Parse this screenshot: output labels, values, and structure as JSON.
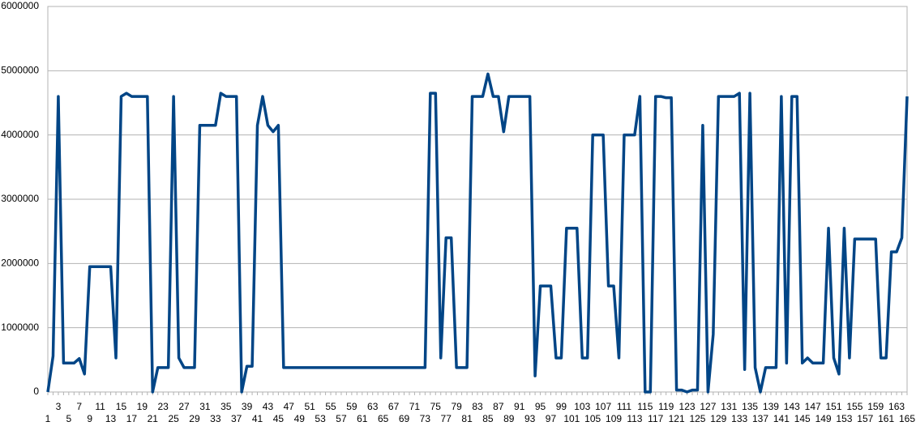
{
  "chart_data": {
    "type": "line",
    "categories": [
      1,
      null,
      3,
      null,
      5,
      null,
      7,
      null,
      9,
      null,
      11,
      null,
      13,
      null,
      15,
      null,
      17,
      null,
      19,
      null,
      21,
      null,
      23,
      null,
      25,
      null,
      27,
      null,
      29,
      null,
      31,
      null,
      33,
      null,
      35,
      null,
      37,
      null,
      39,
      null,
      41,
      null,
      43,
      null,
      45,
      null,
      47,
      null,
      49,
      null,
      51,
      null,
      53,
      null,
      55,
      null,
      57,
      null,
      59,
      null,
      61,
      null,
      63,
      null,
      65,
      null,
      67,
      null,
      69,
      null,
      71,
      null,
      73,
      null,
      75,
      null,
      77,
      null,
      79,
      null,
      81,
      null,
      83,
      null,
      85,
      null,
      87,
      null,
      89,
      null,
      91,
      null,
      93,
      null,
      95,
      null,
      97,
      null,
      99,
      null,
      101,
      null,
      103,
      null,
      105,
      null,
      107,
      null,
      109,
      null,
      111,
      null,
      113,
      null,
      115,
      null,
      117,
      null,
      119,
      null,
      121,
      null,
      123,
      null,
      125,
      null,
      127,
      null,
      129,
      null,
      131,
      null,
      133,
      null,
      135,
      null,
      137,
      null,
      139,
      null,
      141,
      null,
      143,
      null,
      145,
      null,
      147,
      null,
      149,
      null,
      151,
      null,
      153,
      null,
      155,
      null,
      157,
      null,
      159,
      null,
      161,
      null,
      163,
      null,
      165
    ],
    "series": [
      {
        "color": "#004586",
        "values": [
          0,
          560000,
          4600000,
          450000,
          450000,
          450000,
          520000,
          280000,
          1950000,
          1950000,
          1950000,
          1950000,
          1950000,
          530000,
          4600000,
          4650000,
          4600000,
          4600000,
          4600000,
          4600000,
          0,
          380000,
          380000,
          380000,
          4600000,
          530000,
          380000,
          380000,
          380000,
          4150000,
          4150000,
          4150000,
          4150000,
          4650000,
          4600000,
          4600000,
          4600000,
          0,
          400000,
          400000,
          4150000,
          4600000,
          4150000,
          4050000,
          4150000,
          380000,
          380000,
          380000,
          380000,
          380000,
          380000,
          380000,
          380000,
          380000,
          380000,
          380000,
          380000,
          380000,
          380000,
          380000,
          380000,
          380000,
          380000,
          380000,
          380000,
          380000,
          380000,
          380000,
          380000,
          380000,
          380000,
          380000,
          380000,
          4650000,
          4650000,
          530000,
          2400000,
          2400000,
          380000,
          380000,
          380000,
          4600000,
          4600000,
          4600000,
          4950000,
          4600000,
          4600000,
          4050000,
          4600000,
          4600000,
          4600000,
          4600000,
          4600000,
          250000,
          1650000,
          1650000,
          1650000,
          530000,
          530000,
          2550000,
          2550000,
          2550000,
          530000,
          530000,
          4000000,
          4000000,
          4000000,
          1650000,
          1650000,
          530000,
          4000000,
          4000000,
          4000000,
          4600000,
          0,
          0,
          4600000,
          4600000,
          4580000,
          4580000,
          30000,
          30000,
          0,
          30000,
          30000,
          4150000,
          0,
          900000,
          4600000,
          4600000,
          4600000,
          4600000,
          4650000,
          350000,
          4650000,
          380000,
          0,
          380000,
          380000,
          380000,
          4600000,
          450000,
          4600000,
          4600000,
          450000,
          530000,
          450000,
          450000,
          450000,
          2550000,
          530000,
          280000,
          2550000,
          530000,
          2380000,
          2380000,
          2380000,
          2380000,
          2380000,
          530000,
          530000,
          2180000,
          2180000,
          2400000,
          4600000
        ]
      }
    ],
    "ylim": [
      0,
      6000000
    ],
    "yticks": [
      0,
      1000000,
      2000000,
      3000000,
      4000000,
      5000000,
      6000000
    ],
    "grid": true
  }
}
